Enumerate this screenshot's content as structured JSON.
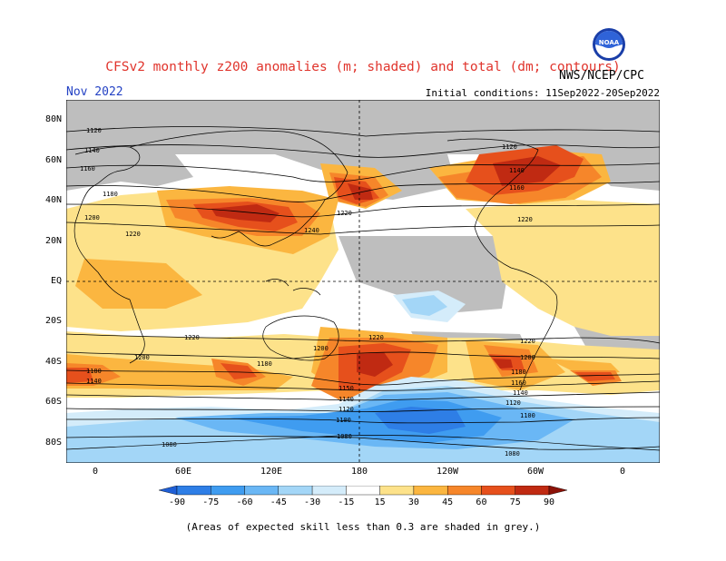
{
  "header": {
    "title": "CFSv2 monthly z200 anomalies (m; shaded) and total (dm; contours)",
    "month": "Nov 2022",
    "initial_conditions": "Initial conditions: 11Sep2022-20Sep2022",
    "agency": "NWS/NCEP/CPC",
    "logo_text": "NOAA"
  },
  "map": {
    "lat_labels": [
      "80N",
      "60N",
      "40N",
      "20N",
      "EQ",
      "20S",
      "40S",
      "60S",
      "80S"
    ],
    "lon_labels": [
      "0",
      "60E",
      "120E",
      "180",
      "120W",
      "60W",
      "0"
    ],
    "contour_labels": [
      "1120",
      "1140",
      "1160",
      "1180",
      "1200",
      "1220",
      "1240",
      "1080",
      "1100",
      "1150"
    ],
    "skill_grey_color": "#bebebe"
  },
  "colorbar": {
    "labels": [
      "-90",
      "-75",
      "-60",
      "-45",
      "-30",
      "-15",
      "15",
      "30",
      "45",
      "60",
      "75",
      "90"
    ],
    "colors": [
      "#1f5fd6",
      "#2e7ee6",
      "#3f9cf0",
      "#6ab7f5",
      "#a3d6f7",
      "#d4ecfa",
      "#ffffff",
      "#fde28a",
      "#fbb640",
      "#f6862a",
      "#e6501c",
      "#c02a12",
      "#8c1208"
    ]
  },
  "footnote": "(Areas of expected skill less than 0.3 are shaded in grey.)"
}
